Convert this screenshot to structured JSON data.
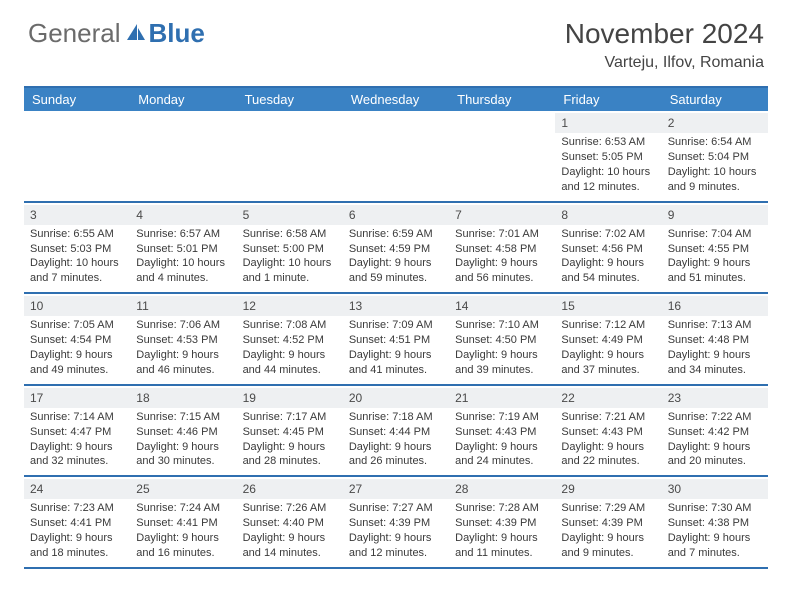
{
  "logo": {
    "text_gray": "General",
    "text_blue": "Blue"
  },
  "title": "November 2024",
  "location": "Varteju, Ilfov, Romania",
  "colors": {
    "header_bg": "#3a82c4",
    "header_text": "#ffffff",
    "border": "#2f6fb0",
    "daynum_bg": "#eef0f2",
    "text": "#3a3a3a",
    "logo_gray": "#6b6b6b",
    "logo_blue": "#2f6fb0"
  },
  "day_headers": [
    "Sunday",
    "Monday",
    "Tuesday",
    "Wednesday",
    "Thursday",
    "Friday",
    "Saturday"
  ],
  "weeks": [
    [
      {
        "day": "",
        "sunrise": "",
        "sunset": "",
        "daylight": ""
      },
      {
        "day": "",
        "sunrise": "",
        "sunset": "",
        "daylight": ""
      },
      {
        "day": "",
        "sunrise": "",
        "sunset": "",
        "daylight": ""
      },
      {
        "day": "",
        "sunrise": "",
        "sunset": "",
        "daylight": ""
      },
      {
        "day": "",
        "sunrise": "",
        "sunset": "",
        "daylight": ""
      },
      {
        "day": "1",
        "sunrise": "Sunrise: 6:53 AM",
        "sunset": "Sunset: 5:05 PM",
        "daylight": "Daylight: 10 hours and 12 minutes."
      },
      {
        "day": "2",
        "sunrise": "Sunrise: 6:54 AM",
        "sunset": "Sunset: 5:04 PM",
        "daylight": "Daylight: 10 hours and 9 minutes."
      }
    ],
    [
      {
        "day": "3",
        "sunrise": "Sunrise: 6:55 AM",
        "sunset": "Sunset: 5:03 PM",
        "daylight": "Daylight: 10 hours and 7 minutes."
      },
      {
        "day": "4",
        "sunrise": "Sunrise: 6:57 AM",
        "sunset": "Sunset: 5:01 PM",
        "daylight": "Daylight: 10 hours and 4 minutes."
      },
      {
        "day": "5",
        "sunrise": "Sunrise: 6:58 AM",
        "sunset": "Sunset: 5:00 PM",
        "daylight": "Daylight: 10 hours and 1 minute."
      },
      {
        "day": "6",
        "sunrise": "Sunrise: 6:59 AM",
        "sunset": "Sunset: 4:59 PM",
        "daylight": "Daylight: 9 hours and 59 minutes."
      },
      {
        "day": "7",
        "sunrise": "Sunrise: 7:01 AM",
        "sunset": "Sunset: 4:58 PM",
        "daylight": "Daylight: 9 hours and 56 minutes."
      },
      {
        "day": "8",
        "sunrise": "Sunrise: 7:02 AM",
        "sunset": "Sunset: 4:56 PM",
        "daylight": "Daylight: 9 hours and 54 minutes."
      },
      {
        "day": "9",
        "sunrise": "Sunrise: 7:04 AM",
        "sunset": "Sunset: 4:55 PM",
        "daylight": "Daylight: 9 hours and 51 minutes."
      }
    ],
    [
      {
        "day": "10",
        "sunrise": "Sunrise: 7:05 AM",
        "sunset": "Sunset: 4:54 PM",
        "daylight": "Daylight: 9 hours and 49 minutes."
      },
      {
        "day": "11",
        "sunrise": "Sunrise: 7:06 AM",
        "sunset": "Sunset: 4:53 PM",
        "daylight": "Daylight: 9 hours and 46 minutes."
      },
      {
        "day": "12",
        "sunrise": "Sunrise: 7:08 AM",
        "sunset": "Sunset: 4:52 PM",
        "daylight": "Daylight: 9 hours and 44 minutes."
      },
      {
        "day": "13",
        "sunrise": "Sunrise: 7:09 AM",
        "sunset": "Sunset: 4:51 PM",
        "daylight": "Daylight: 9 hours and 41 minutes."
      },
      {
        "day": "14",
        "sunrise": "Sunrise: 7:10 AM",
        "sunset": "Sunset: 4:50 PM",
        "daylight": "Daylight: 9 hours and 39 minutes."
      },
      {
        "day": "15",
        "sunrise": "Sunrise: 7:12 AM",
        "sunset": "Sunset: 4:49 PM",
        "daylight": "Daylight: 9 hours and 37 minutes."
      },
      {
        "day": "16",
        "sunrise": "Sunrise: 7:13 AM",
        "sunset": "Sunset: 4:48 PM",
        "daylight": "Daylight: 9 hours and 34 minutes."
      }
    ],
    [
      {
        "day": "17",
        "sunrise": "Sunrise: 7:14 AM",
        "sunset": "Sunset: 4:47 PM",
        "daylight": "Daylight: 9 hours and 32 minutes."
      },
      {
        "day": "18",
        "sunrise": "Sunrise: 7:15 AM",
        "sunset": "Sunset: 4:46 PM",
        "daylight": "Daylight: 9 hours and 30 minutes."
      },
      {
        "day": "19",
        "sunrise": "Sunrise: 7:17 AM",
        "sunset": "Sunset: 4:45 PM",
        "daylight": "Daylight: 9 hours and 28 minutes."
      },
      {
        "day": "20",
        "sunrise": "Sunrise: 7:18 AM",
        "sunset": "Sunset: 4:44 PM",
        "daylight": "Daylight: 9 hours and 26 minutes."
      },
      {
        "day": "21",
        "sunrise": "Sunrise: 7:19 AM",
        "sunset": "Sunset: 4:43 PM",
        "daylight": "Daylight: 9 hours and 24 minutes."
      },
      {
        "day": "22",
        "sunrise": "Sunrise: 7:21 AM",
        "sunset": "Sunset: 4:43 PM",
        "daylight": "Daylight: 9 hours and 22 minutes."
      },
      {
        "day": "23",
        "sunrise": "Sunrise: 7:22 AM",
        "sunset": "Sunset: 4:42 PM",
        "daylight": "Daylight: 9 hours and 20 minutes."
      }
    ],
    [
      {
        "day": "24",
        "sunrise": "Sunrise: 7:23 AM",
        "sunset": "Sunset: 4:41 PM",
        "daylight": "Daylight: 9 hours and 18 minutes."
      },
      {
        "day": "25",
        "sunrise": "Sunrise: 7:24 AM",
        "sunset": "Sunset: 4:41 PM",
        "daylight": "Daylight: 9 hours and 16 minutes."
      },
      {
        "day": "26",
        "sunrise": "Sunrise: 7:26 AM",
        "sunset": "Sunset: 4:40 PM",
        "daylight": "Daylight: 9 hours and 14 minutes."
      },
      {
        "day": "27",
        "sunrise": "Sunrise: 7:27 AM",
        "sunset": "Sunset: 4:39 PM",
        "daylight": "Daylight: 9 hours and 12 minutes."
      },
      {
        "day": "28",
        "sunrise": "Sunrise: 7:28 AM",
        "sunset": "Sunset: 4:39 PM",
        "daylight": "Daylight: 9 hours and 11 minutes."
      },
      {
        "day": "29",
        "sunrise": "Sunrise: 7:29 AM",
        "sunset": "Sunset: 4:39 PM",
        "daylight": "Daylight: 9 hours and 9 minutes."
      },
      {
        "day": "30",
        "sunrise": "Sunrise: 7:30 AM",
        "sunset": "Sunset: 4:38 PM",
        "daylight": "Daylight: 9 hours and 7 minutes."
      }
    ]
  ]
}
